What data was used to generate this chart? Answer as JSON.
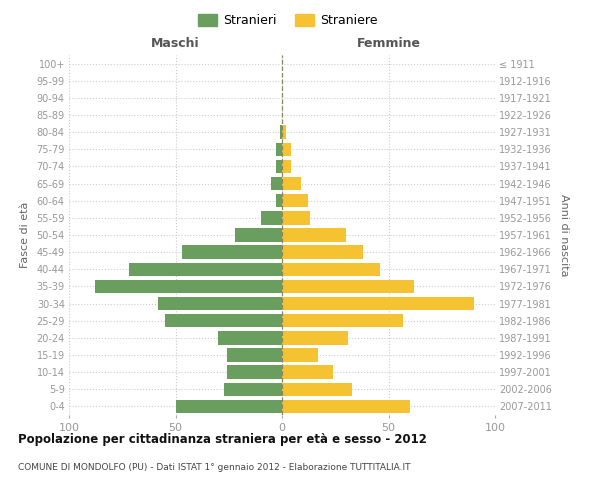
{
  "age_groups": [
    "0-4",
    "5-9",
    "10-14",
    "15-19",
    "20-24",
    "25-29",
    "30-34",
    "35-39",
    "40-44",
    "45-49",
    "50-54",
    "55-59",
    "60-64",
    "65-69",
    "70-74",
    "75-79",
    "80-84",
    "85-89",
    "90-94",
    "95-99",
    "100+"
  ],
  "birth_years": [
    "2007-2011",
    "2002-2006",
    "1997-2001",
    "1992-1996",
    "1987-1991",
    "1982-1986",
    "1977-1981",
    "1972-1976",
    "1967-1971",
    "1962-1966",
    "1957-1961",
    "1952-1956",
    "1947-1951",
    "1942-1946",
    "1937-1941",
    "1932-1936",
    "1927-1931",
    "1922-1926",
    "1917-1921",
    "1912-1916",
    "≤ 1911"
  ],
  "maschi": [
    50,
    27,
    26,
    26,
    30,
    55,
    58,
    88,
    72,
    47,
    22,
    10,
    3,
    5,
    3,
    3,
    1,
    0,
    0,
    0,
    0
  ],
  "femmine": [
    60,
    33,
    24,
    17,
    31,
    57,
    90,
    62,
    46,
    38,
    30,
    13,
    12,
    9,
    4,
    4,
    2,
    0,
    0,
    0,
    0
  ],
  "color_maschi": "#6a9e5e",
  "color_femmine": "#f5c332",
  "background_color": "#ffffff",
  "grid_color": "#cccccc",
  "title": "Popolazione per cittadinanza straniera per età e sesso - 2012",
  "subtitle": "COMUNE DI MONDOLFO (PU) - Dati ISTAT 1° gennaio 2012 - Elaborazione TUTTITALIA.IT",
  "label_maschi": "Maschi",
  "label_femmine": "Femmine",
  "ylabel_left": "Fasce di età",
  "ylabel_right": "Anni di nascita",
  "xlim": 100,
  "legend_stranieri": "Stranieri",
  "legend_straniere": "Straniere"
}
